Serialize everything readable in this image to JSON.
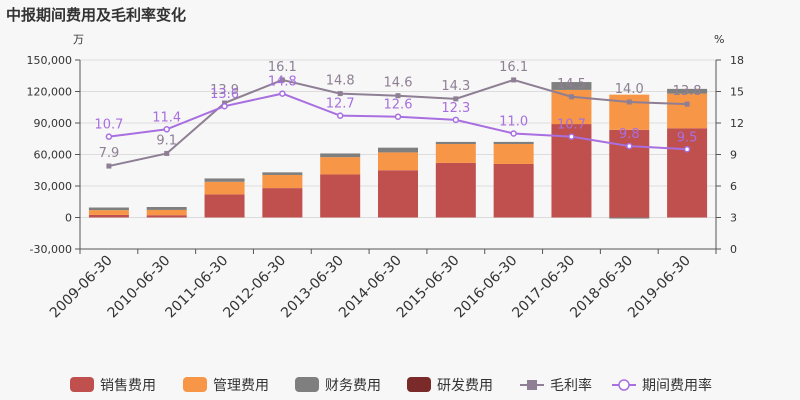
{
  "chart_data": {
    "type": "bar",
    "title": "中报期间费用及毛利率变化",
    "left_unit": "万",
    "right_unit": "%",
    "categories": [
      "2009-06-30",
      "2010-06-30",
      "2011-06-30",
      "2012-06-30",
      "2013-06-30",
      "2014-06-30",
      "2015-06-30",
      "2016-06-30",
      "2017-06-30",
      "2018-06-30",
      "2019-06-30"
    ],
    "ylim_left": [
      -30000,
      150000
    ],
    "yticks_left": [
      -30000,
      0,
      30000,
      60000,
      90000,
      120000,
      150000
    ],
    "ytick_labels_left": [
      "-30,000",
      "0",
      "30,000",
      "60,000",
      "90,000",
      "120,000",
      "150,000"
    ],
    "ylim_right": [
      0,
      18
    ],
    "yticks_right": [
      0,
      3,
      6,
      9,
      12,
      15,
      18
    ],
    "ytick_labels_right": [
      "0",
      "3",
      "6",
      "9",
      "12",
      "15",
      "18"
    ],
    "series": [
      {
        "name": "销售费用",
        "kind": "bar",
        "color": "#c0504d",
        "values": [
          2500,
          2200,
          22000,
          28000,
          41000,
          45000,
          52000,
          51000,
          89000,
          83500,
          85000
        ]
      },
      {
        "name": "管理费用",
        "kind": "bar",
        "color": "#f79646",
        "values": [
          4500,
          5000,
          12000,
          12500,
          16500,
          17000,
          18000,
          19000,
          32500,
          33500,
          33000
        ]
      },
      {
        "name": "财务费用",
        "kind": "bar",
        "color": "#7f7f7f",
        "values": [
          2500,
          2800,
          3200,
          2500,
          3500,
          4500,
          2000,
          2000,
          7500,
          -1000,
          4500
        ]
      },
      {
        "name": "研发费用",
        "kind": "bar",
        "color": "#7b2a2a",
        "values": [
          0,
          0,
          0,
          0,
          0,
          0,
          0,
          0,
          0,
          0,
          0
        ]
      },
      {
        "name": "毛利率",
        "kind": "line",
        "color": "#8e7f94",
        "values": [
          7.9,
          9.1,
          13.9,
          16.1,
          14.8,
          14.6,
          14.3,
          16.1,
          14.5,
          14.0,
          13.8
        ],
        "labels": [
          "7.9",
          "9.1",
          "13.9",
          "16.1",
          "14.8",
          "14.6",
          "14.3",
          "16.1",
          "14.5",
          "14.0",
          "13.8"
        ]
      },
      {
        "name": "期间费用率",
        "kind": "line",
        "color": "#a86fe0",
        "values": [
          10.7,
          11.4,
          13.6,
          14.8,
          12.7,
          12.6,
          12.3,
          11.0,
          10.7,
          9.8,
          9.5
        ],
        "labels": [
          "10.7",
          "11.4",
          "13.6",
          "14.8",
          "12.7",
          "12.6",
          "12.3",
          "11.0",
          "10.7",
          "9.8",
          "9.5"
        ]
      }
    ],
    "legend_position": "bottom"
  }
}
